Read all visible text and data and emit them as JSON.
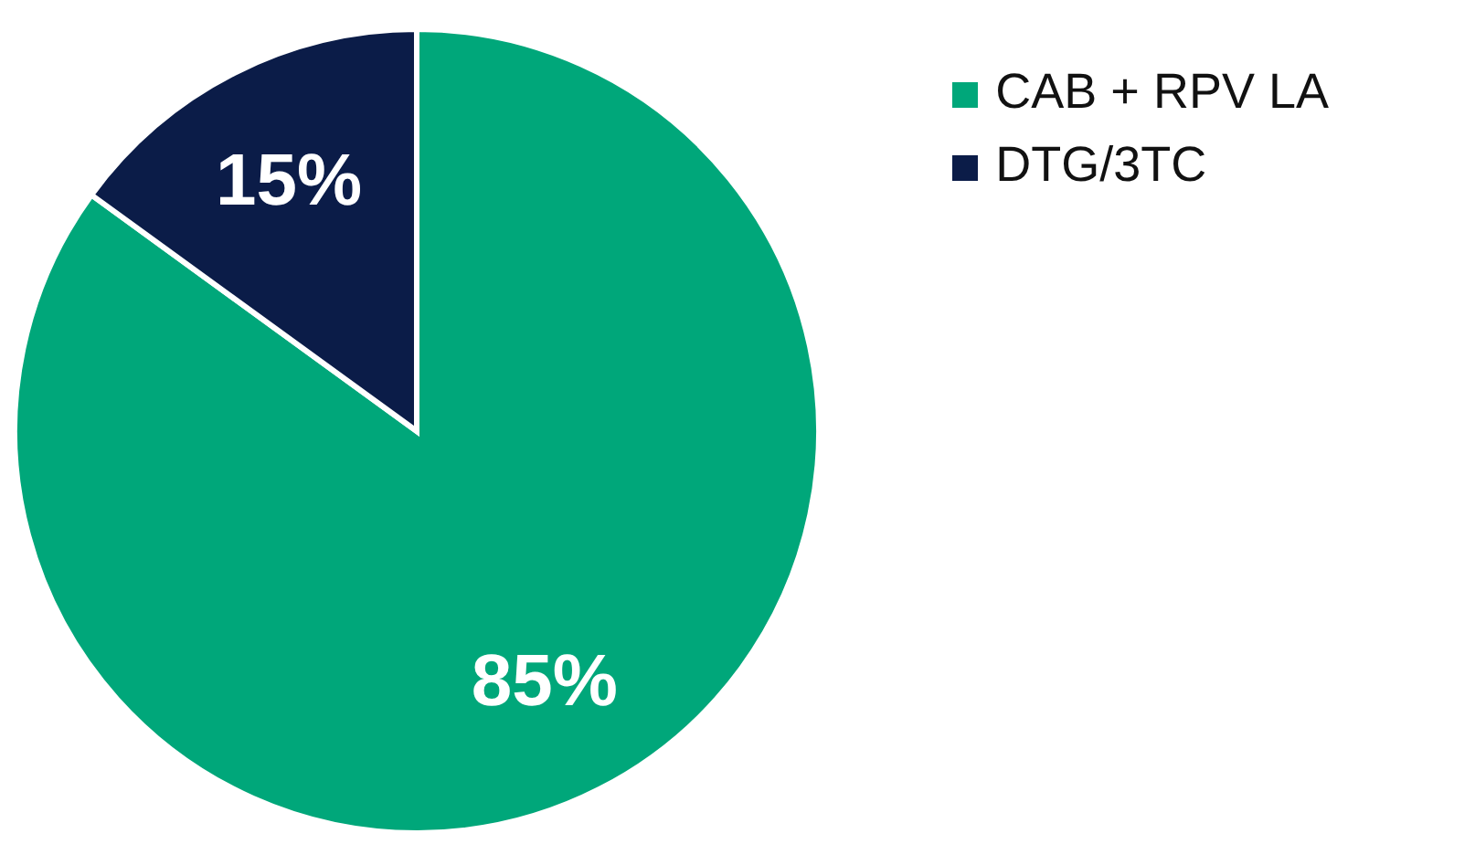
{
  "chart_data": {
    "type": "pie",
    "categories": [
      "CAB + RPV LA",
      "DTG/3TC"
    ],
    "values": [
      85,
      15
    ],
    "colors": [
      "#00a77a",
      "#0b1c48"
    ],
    "value_labels": [
      "85%",
      "15%"
    ],
    "legend": "top right"
  }
}
